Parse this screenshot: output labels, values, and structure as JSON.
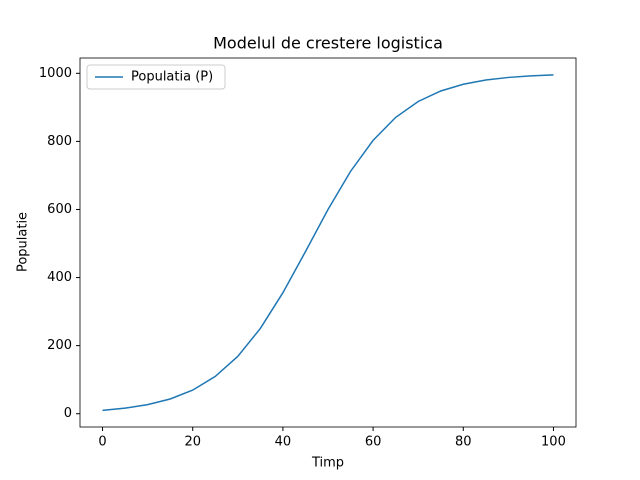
{
  "chart_data": {
    "type": "line",
    "title": "Modelul de crestere logistica",
    "x_label": "Timp",
    "y_label": "Populatie",
    "x": [
      0,
      5,
      10,
      15,
      20,
      25,
      30,
      35,
      40,
      45,
      50,
      55,
      60,
      65,
      70,
      75,
      80,
      85,
      90,
      95,
      100
    ],
    "series": [
      {
        "name": "Populatia (P)",
        "color": "#1f77b4",
        "values": [
          10,
          16.4,
          26.7,
          43.3,
          69.4,
          109.6,
          168.7,
          250.6,
          355.5,
          476.2,
          599.9,
          712.0,
          803.0,
          870.5,
          917.2,
          948.1,
          967.9,
          980.3,
          987.9,
          992.6,
          995.5
        ]
      }
    ],
    "xlim": [
      -5,
      105
    ],
    "xticks": [
      0,
      20,
      40,
      60,
      80,
      100
    ],
    "ylim": [
      -39,
      1045
    ],
    "yticks": [
      0,
      200,
      400,
      600,
      800,
      1000
    ],
    "legend": "upper left",
    "grid": false
  }
}
